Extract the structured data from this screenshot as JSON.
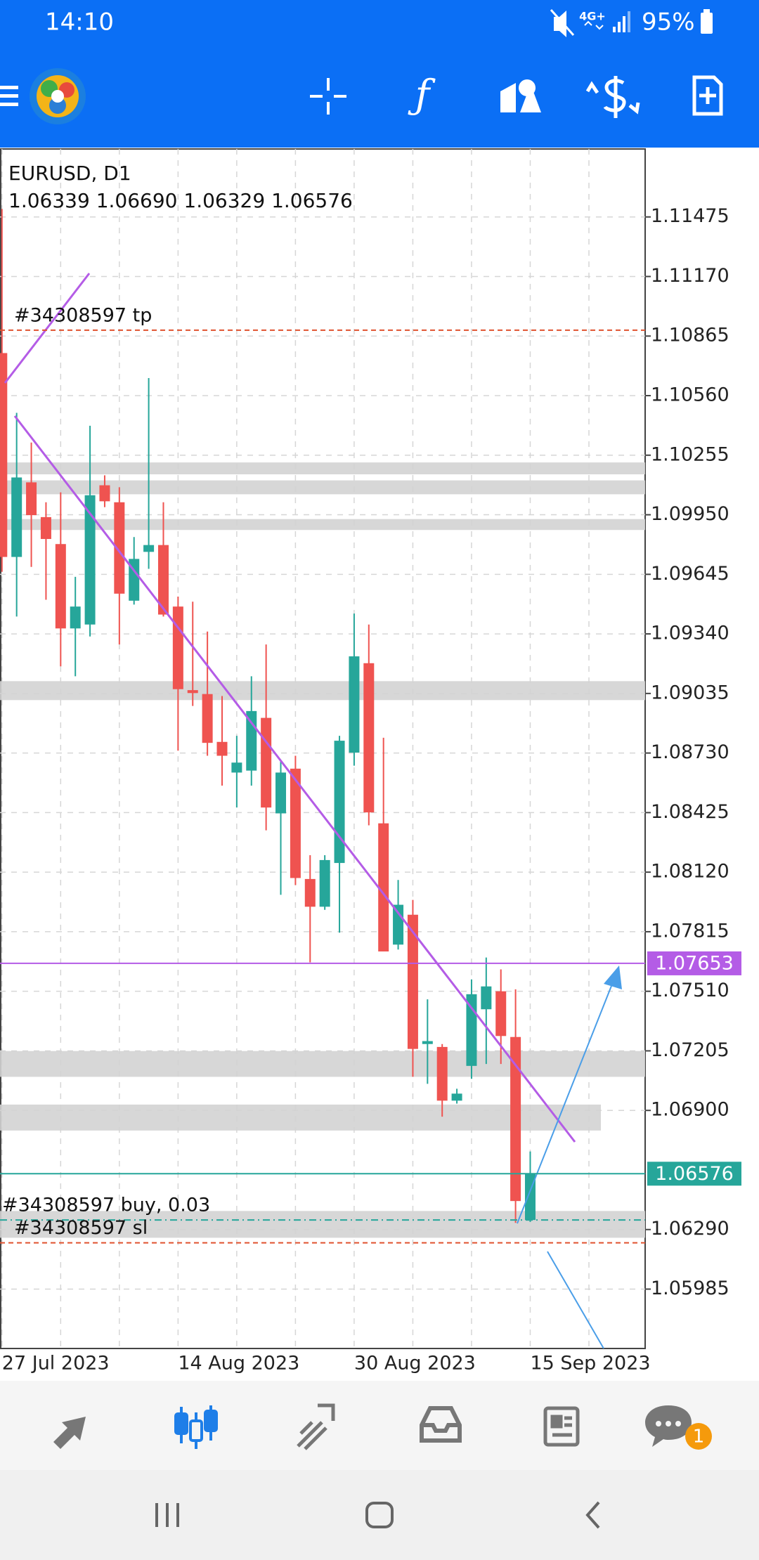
{
  "status_bar": {
    "time": "14:10",
    "network": "4G+",
    "battery": "95%"
  },
  "chart_data": {
    "type": "candlestick",
    "title": "EURUSD, D1",
    "ohlc_text": "1.06339 1.06690 1.06329 1.06576",
    "categories": [
      "27 Jul 2023",
      null,
      null,
      null,
      null,
      null,
      null,
      null,
      null,
      null,
      null,
      null,
      "14 Aug 2023",
      null,
      null,
      null,
      null,
      null,
      null,
      null,
      null,
      null,
      null,
      null,
      "30 Aug 2023",
      null,
      null,
      null,
      null,
      null,
      null,
      null,
      null,
      null,
      null,
      null,
      "15 Sep 2023"
    ],
    "open": [
      1.10778,
      1.09734,
      1.10116,
      1.09938,
      1.098,
      1.09368,
      1.09388,
      1.10101,
      1.10014,
      1.0951,
      1.0976,
      1.09795,
      1.0948,
      1.09052,
      1.09032,
      1.08787,
      1.0863,
      1.0864,
      1.0891,
      1.08421,
      1.0865,
      1.08085,
      1.07943,
      1.08167,
      1.08732,
      1.0919,
      1.0837,
      1.07749,
      1.07902,
      1.0724,
      1.07225,
      1.0695,
      1.07128,
      1.07418,
      1.0751,
      1.07276,
      1.06339
    ],
    "high": [
      1.11516,
      1.10472,
      1.1032,
      1.10014,
      1.10065,
      1.09632,
      1.10406,
      1.10152,
      1.10091,
      1.09836,
      1.1065,
      1.10014,
      1.09531,
      1.09505,
      1.09352,
      1.09022,
      1.08818,
      1.09123,
      1.09286,
      1.08691,
      1.08716,
      1.08207,
      1.08207,
      1.08818,
      1.09444,
      1.09388,
      1.08808,
      1.0808,
      1.07978,
      1.07469,
      1.0724,
      1.07011,
      1.07571,
      1.07683,
      1.07622,
      1.0752,
      1.0669
    ],
    "low": [
      1.09658,
      1.09429,
      1.09683,
      1.09515,
      1.09174,
      1.09123,
      1.09327,
      1.09989,
      1.09286,
      1.0949,
      1.09673,
      1.09429,
      1.08742,
      1.08971,
      1.08716,
      1.08563,
      1.08451,
      1.08563,
      1.08334,
      1.08004,
      1.08054,
      1.07658,
      1.07927,
      1.0781,
      1.08665,
      1.0836,
      1.07714,
      1.07724,
      1.07072,
      1.07036,
      1.06868,
      1.06935,
      1.07062,
      1.07138,
      1.07138,
      1.06324,
      1.06329
    ],
    "close": [
      1.09734,
      1.10141,
      1.09948,
      1.09826,
      1.09368,
      1.0948,
      1.1005,
      1.10019,
      1.09546,
      1.09724,
      1.09795,
      1.09439,
      1.09057,
      1.09037,
      1.08782,
      1.08716,
      1.08681,
      1.08945,
      1.08451,
      1.0863,
      1.0809,
      1.07943,
      1.08182,
      1.08793,
      1.09225,
      1.08426,
      1.07714,
      1.07953,
      1.07215,
      1.07255,
      1.0695,
      1.06986,
      1.07495,
      1.07535,
      1.07281,
      1.06436,
      1.06576
    ],
    "up_color": "#26a69a",
    "down_color": "#ef5350",
    "ylim": [
      1.05681,
      1.11823
    ],
    "yticks": [
      1.11475,
      {
        "value": 1.1117,
        "label": "1.11170"
      },
      1.10865,
      {
        "value": 1.1056,
        "label": "1.10560"
      },
      1.10255,
      {
        "value": 1.0995,
        "label": "1.09950"
      },
      1.09645,
      {
        "value": 1.0934,
        "label": "1.09340"
      },
      1.09035,
      {
        "value": 1.0873,
        "label": "1.08730"
      },
      1.08425,
      {
        "value": 1.0812,
        "label": "1.08120"
      },
      1.07815,
      {
        "value": 1.0751,
        "label": "1.07510"
      },
      1.07205,
      {
        "value": 1.069,
        "label": "1.06900"
      },
      {
        "value": 1.0629,
        "label": "1.06290"
      },
      1.05985
    ],
    "grid": true,
    "order_lines": [
      {
        "label": "#34308597 tp",
        "value": 1.10895,
        "color": "#e0522f"
      },
      {
        "label": "#34308597 buy, 0.03",
        "value": 1.06339,
        "color": "#26a69a"
      },
      {
        "label": "#34308597 sl",
        "value": 1.06222,
        "color": "#e0522f"
      }
    ],
    "price_tags": [
      {
        "value": 1.07653,
        "color": "#b45ce6"
      },
      {
        "value": 1.06576,
        "color": "#26a69a"
      }
    ],
    "zones": [
      [
        1.10218,
        1.10157
      ],
      [
        1.10126,
        1.10055
      ],
      [
        1.09928,
        1.09872
      ],
      [
        1.09098,
        1.09001
      ],
      [
        1.07204,
        1.07072
      ],
      [
        1.0693,
        1.06797
      ],
      [
        1.06385,
        1.06248
      ]
    ]
  },
  "bottom_nav": {
    "badge": "1"
  }
}
